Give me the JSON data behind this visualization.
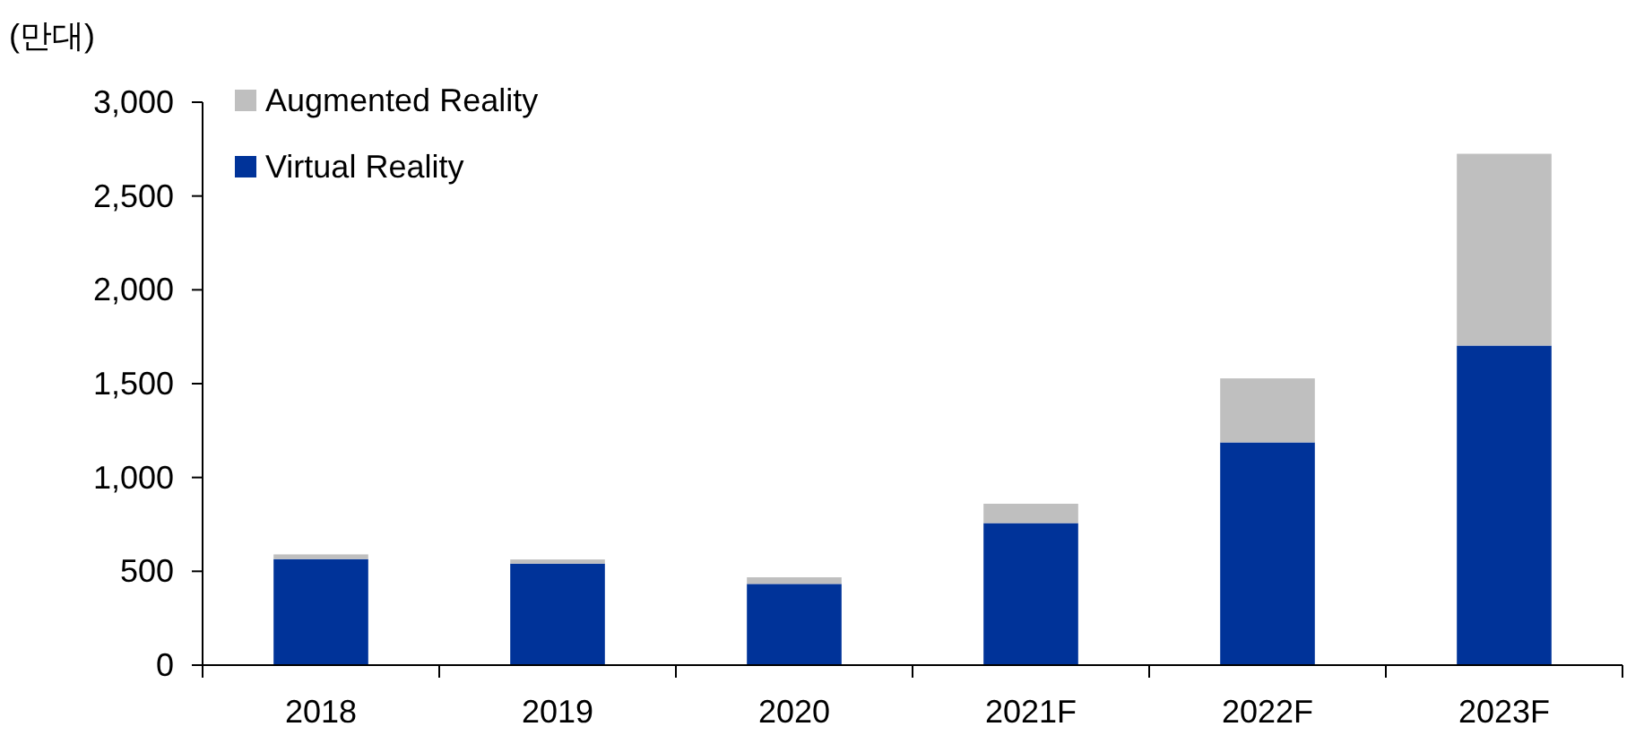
{
  "chart_data": {
    "type": "bar",
    "stacked": true,
    "ylabel": "(만대)",
    "categories": [
      "2018",
      "2019",
      "2020",
      "2021F",
      "2022F",
      "2023F"
    ],
    "series": [
      {
        "name": "Virtual Reality",
        "color": "#003399",
        "values": [
          565,
          541,
          433,
          757,
          1187,
          1703
        ]
      },
      {
        "name": "Augmented Reality",
        "color": "#bfbfbf",
        "values": [
          25,
          22,
          35,
          103,
          341,
          1022
        ]
      }
    ],
    "ylim": [
      0,
      3000
    ],
    "yticks": [
      0,
      {
        "value": 500,
        "label": "500"
      },
      {
        "value": 1000,
        "label": "1,000"
      },
      {
        "value": 1500,
        "label": "1,500"
      },
      {
        "value": 2000,
        "label": "2,000"
      },
      {
        "value": 2500,
        "label": "2,500"
      },
      {
        "value": 3000,
        "label": "3,000"
      }
    ],
    "grid": false,
    "legend": "top left"
  }
}
